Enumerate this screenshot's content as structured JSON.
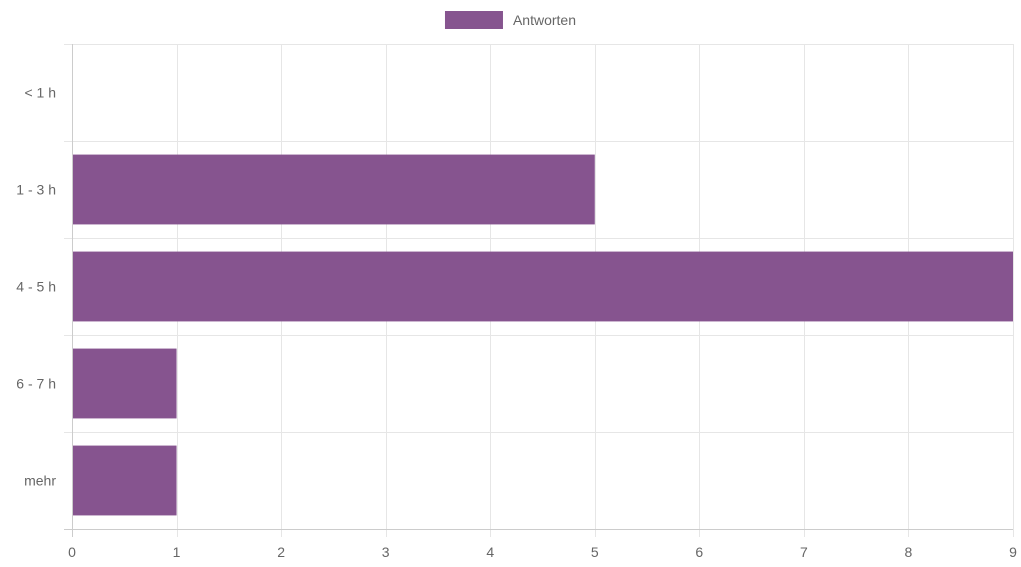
{
  "chart_data": {
    "type": "bar",
    "orientation": "horizontal",
    "categories": [
      "< 1 h",
      "1 - 3 h",
      "4 - 5 h",
      "6 - 7 h",
      "mehr"
    ],
    "series": [
      {
        "name": "Antworten",
        "values": [
          0,
          5,
          9,
          1,
          1
        ],
        "color": "#86548f"
      }
    ],
    "xlim": [
      0,
      9
    ],
    "xticks": [
      "0",
      "1",
      "2",
      "3",
      "4",
      "5",
      "6",
      "7",
      "8",
      "9"
    ],
    "grid": true,
    "legend_position": "top"
  },
  "colors": {
    "bar": "#86548f",
    "grid": "#e6e6e6",
    "axis": "#cccccc",
    "text": "#666666"
  }
}
